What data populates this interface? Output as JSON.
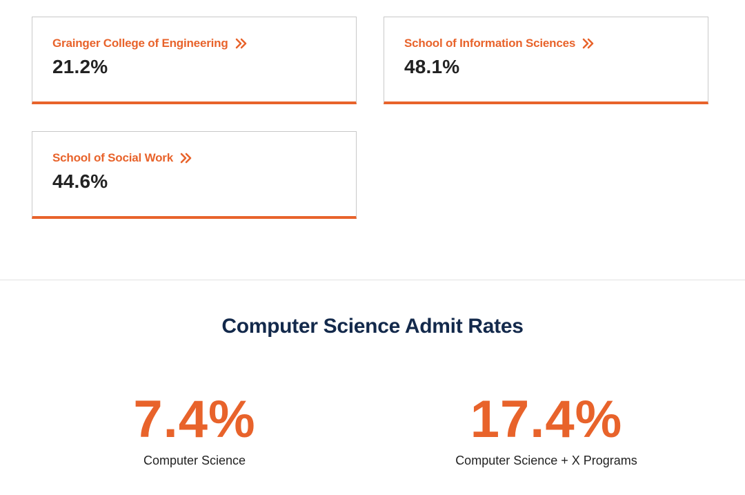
{
  "colleges": [
    {
      "name": "Grainger College of Engineering",
      "rate": "21.2%",
      "icon": "double-chevron-right-icon"
    },
    {
      "name": "School of Information Sciences",
      "rate": "48.1%",
      "icon": "double-chevron-right-icon"
    },
    {
      "name": "School of Social Work",
      "rate": "44.6%",
      "icon": "double-chevron-right-icon"
    }
  ],
  "cs_section": {
    "title": "Computer Science Admit Rates",
    "stats": [
      {
        "value": "7.4%",
        "label": "Computer Science"
      },
      {
        "value": "17.4%",
        "label": "Computer Science + X Programs"
      }
    ]
  },
  "colors": {
    "accent": "#e8632b",
    "title": "#13294b",
    "text": "#222222",
    "card_border": "#c8c8c8"
  }
}
